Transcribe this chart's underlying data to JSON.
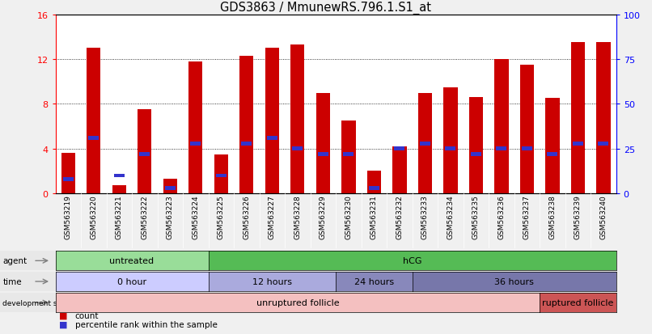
{
  "title": "GDS3863 / MmunewRS.796.1.S1_at",
  "samples": [
    "GSM563219",
    "GSM563220",
    "GSM563221",
    "GSM563222",
    "GSM563223",
    "GSM563224",
    "GSM563225",
    "GSM563226",
    "GSM563227",
    "GSM563228",
    "GSM563229",
    "GSM563230",
    "GSM563231",
    "GSM563232",
    "GSM563233",
    "GSM563234",
    "GSM563235",
    "GSM563236",
    "GSM563237",
    "GSM563238",
    "GSM563239",
    "GSM563240"
  ],
  "counts": [
    3.6,
    13.0,
    0.7,
    7.5,
    1.3,
    11.8,
    3.5,
    12.3,
    13.0,
    13.3,
    9.0,
    6.5,
    2.0,
    4.2,
    9.0,
    9.5,
    8.6,
    12.0,
    11.5,
    8.5,
    13.5,
    13.5
  ],
  "percentile_ranks_pct": [
    8,
    31,
    10,
    22,
    3,
    28,
    10,
    28,
    31,
    25,
    22,
    22,
    3,
    25,
    28,
    25,
    22,
    25,
    25,
    22,
    28,
    28
  ],
  "ylim_left": [
    0,
    16
  ],
  "ylim_right": [
    0,
    100
  ],
  "yticks_left": [
    0,
    4,
    8,
    12,
    16
  ],
  "yticks_right": [
    0,
    25,
    50,
    75,
    100
  ],
  "bar_color": "#cc0000",
  "marker_color": "#3333cc",
  "bar_width": 0.55,
  "agent_untreated": {
    "label": "untreated",
    "start": 0,
    "end": 6,
    "color": "#99dd99"
  },
  "agent_hcg": {
    "label": "hCG",
    "start": 6,
    "end": 22,
    "color": "#55bb55"
  },
  "time_0": {
    "label": "0 hour",
    "start": 0,
    "end": 6,
    "color": "#ccccff"
  },
  "time_12": {
    "label": "12 hours",
    "start": 6,
    "end": 11,
    "color": "#aaaadd"
  },
  "time_24": {
    "label": "24 hours",
    "start": 11,
    "end": 14,
    "color": "#8888bb"
  },
  "time_36": {
    "label": "36 hours",
    "start": 14,
    "end": 22,
    "color": "#7777aa"
  },
  "dev_unruptured": {
    "label": "unruptured follicle",
    "start": 0,
    "end": 19,
    "color": "#f4c0c0"
  },
  "dev_ruptured": {
    "label": "ruptured follicle",
    "start": 19,
    "end": 22,
    "color": "#cc5555"
  },
  "legend_count": "count",
  "legend_percentile": "percentile rank within the sample",
  "fig_bg": "#f0f0f0",
  "plot_bg": "#ffffff",
  "label_bg": "#e8e8e8"
}
